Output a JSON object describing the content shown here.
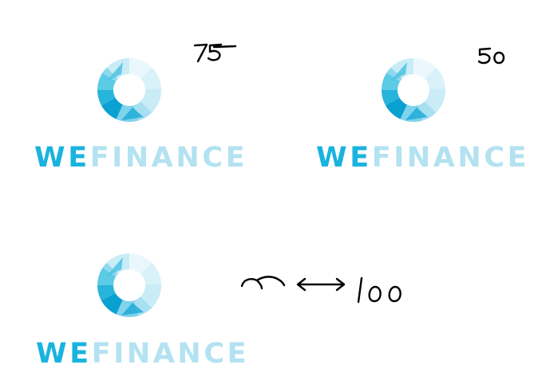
{
  "logo": {
    "we_text": "WE",
    "finance_text": "FINANCE",
    "colors": {
      "we": "#19b3df",
      "finance": "#b3e2f1",
      "ring_dark": "#0aa0d0",
      "ring_mid": "#5ccbe6",
      "ring_light": "#c9ecf7",
      "ring_pale": "#eaf8fd"
    }
  },
  "annotations": {
    "top_left_scale": "75",
    "top_right_scale": "50",
    "reference_label": "100"
  }
}
